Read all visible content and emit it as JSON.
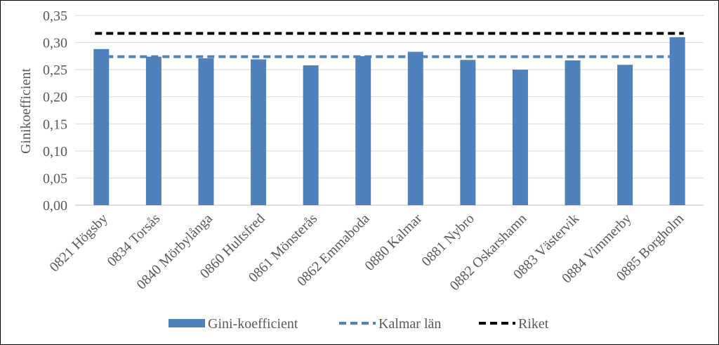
{
  "chart_data": {
    "type": "bar",
    "title": "",
    "xlabel": "",
    "ylabel": "Ginikoefficient",
    "ylim": [
      0,
      0.35
    ],
    "yticks": [
      "0,00",
      "0,05",
      "0,10",
      "0,15",
      "0,20",
      "0,25",
      "0,30",
      "0,35"
    ],
    "ytick_values": [
      0,
      0.05,
      0.1,
      0.15,
      0.2,
      0.25,
      0.3,
      0.35
    ],
    "grid": true,
    "legend_position": "bottom",
    "categories": [
      "0821 Högsby",
      "0834 Torsås",
      "0840 Mörbylånga",
      "0860 Hultsfred",
      "0861 Mönsterås",
      "0862 Emmaboda",
      "0880 Kalmar",
      "0881 Nybro",
      "0882 Oskarshamn",
      "0883 Västervik",
      "0884 Vimmerby",
      "0885 Borgholm"
    ],
    "series": [
      {
        "name": "Gini-koefficient",
        "kind": "bar",
        "color": "#4f81bd",
        "values": [
          0.288,
          0.274,
          0.271,
          0.269,
          0.258,
          0.275,
          0.283,
          0.268,
          0.25,
          0.267,
          0.259,
          0.31
        ]
      },
      {
        "name": "Kalmar län",
        "kind": "dashed-line",
        "color": "#4f81bd",
        "value": 0.274
      },
      {
        "name": "Riket",
        "kind": "dashed-line",
        "color": "#000000",
        "value": 0.317
      }
    ]
  }
}
